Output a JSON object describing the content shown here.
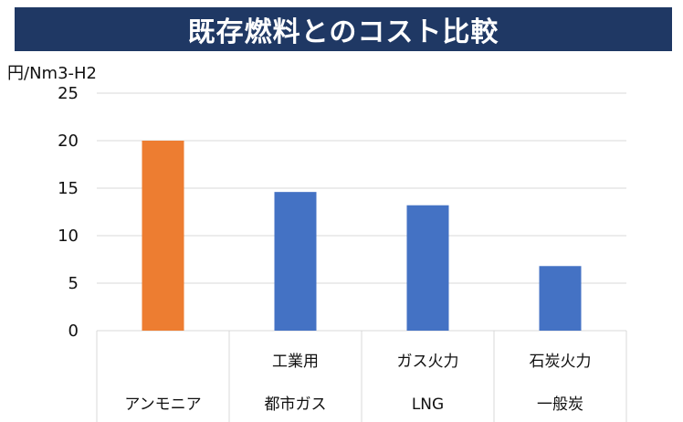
{
  "title": "既存燃料とのコスト比較",
  "colors": {
    "title_bg": "#1f3864",
    "highlight": "#ed7d31",
    "bar": "#4472c4",
    "grid": "#d9d9d9"
  },
  "chart_data": {
    "type": "bar",
    "ylabel": "円/Nm3-H2",
    "ylim": [
      0,
      25
    ],
    "yticks": [
      0,
      5,
      10,
      15,
      20,
      25
    ],
    "grid": true,
    "categories": [
      {
        "line1": "",
        "line2": "アンモニア"
      },
      {
        "line1": "工業用",
        "line2": "都市ガス"
      },
      {
        "line1": "ガス火力",
        "line2": "LNG"
      },
      {
        "line1": "石炭火力",
        "line2": "一般炭"
      }
    ],
    "values": [
      20,
      14.6,
      13.2,
      6.8
    ],
    "bar_colors": [
      "#ed7d31",
      "#4472c4",
      "#4472c4",
      "#4472c4"
    ]
  }
}
